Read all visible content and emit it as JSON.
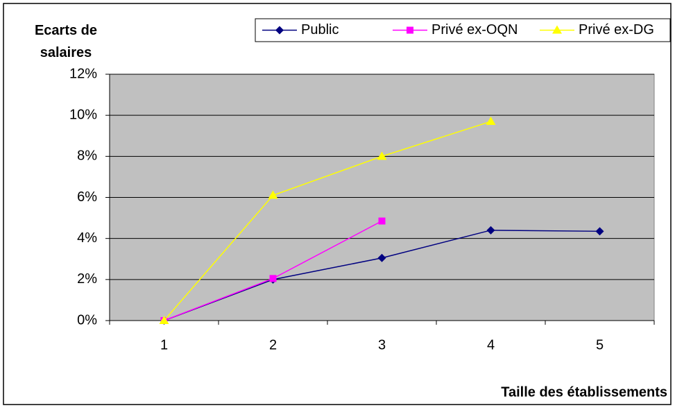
{
  "chart_data": {
    "type": "line",
    "y_label": "Ecarts de salaires",
    "x_label": "Taille des établissements",
    "categories": [
      "1",
      "2",
      "3",
      "4",
      "5"
    ],
    "series": [
      {
        "name": "Public",
        "color": "#000080",
        "marker": "diamond",
        "values": [
          0,
          2.0,
          3.05,
          4.4,
          4.35
        ]
      },
      {
        "name": "Privé ex-OQN",
        "color": "#ff00ff",
        "marker": "square",
        "values": [
          0,
          2.05,
          4.85,
          null,
          null
        ]
      },
      {
        "name": "Privé ex-DG",
        "color": "#ffff00",
        "marker": "triangle",
        "values": [
          0,
          6.1,
          8.0,
          9.7,
          null
        ]
      }
    ],
    "ylim": [
      0,
      12
    ],
    "yticks": [
      {
        "value": 0,
        "label": "0%"
      },
      {
        "value": 2,
        "label": "2%"
      },
      {
        "value": 4,
        "label": "4%"
      },
      {
        "value": 6,
        "label": "6%"
      },
      {
        "value": 8,
        "label": "8%"
      },
      {
        "value": 10,
        "label": "10%"
      },
      {
        "value": 12,
        "label": "12%"
      }
    ],
    "grid": true,
    "legend": "top-right",
    "plot_background": "#c0c0c0"
  }
}
